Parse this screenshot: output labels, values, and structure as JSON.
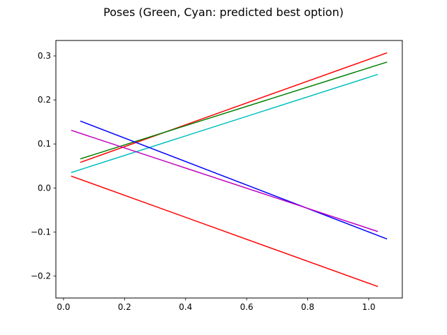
{
  "chart_data": {
    "type": "line",
    "title": "Poses (Green, Cyan: predicted best option)",
    "xlabel": "",
    "ylabel": "",
    "xlim": [
      -0.025,
      1.11
    ],
    "ylim": [
      -0.25,
      0.335
    ],
    "grid": false,
    "xticks": [
      0.0,
      0.2,
      0.4,
      0.6,
      0.8,
      1.0
    ],
    "xtick_labels": [
      "0.0",
      "0.2",
      "0.4",
      "0.6",
      "0.8",
      "1.0"
    ],
    "yticks": [
      -0.2,
      -0.1,
      0.0,
      0.1,
      0.2,
      0.3
    ],
    "ytick_labels": [
      "−0.2",
      "−0.1",
      "0.0",
      "0.1",
      "0.2",
      "0.3"
    ],
    "series": [
      {
        "color": "#ff0000",
        "x": [
          0.055,
          1.06
        ],
        "y": [
          0.058,
          0.307
        ]
      },
      {
        "color": "#008000",
        "x": [
          0.055,
          1.06
        ],
        "y": [
          0.066,
          0.286
        ]
      },
      {
        "color": "#00bfbf",
        "x": [
          0.025,
          1.03
        ],
        "y": [
          0.035,
          0.258
        ]
      },
      {
        "color": "#0000ff",
        "x": [
          0.055,
          1.06
        ],
        "y": [
          0.152,
          -0.116
        ]
      },
      {
        "color": "#bf00bf",
        "x": [
          0.025,
          1.03
        ],
        "y": [
          0.131,
          -0.099
        ]
      },
      {
        "color": "#ff0000",
        "x": [
          0.025,
          1.03
        ],
        "y": [
          0.027,
          -0.224
        ]
      }
    ]
  }
}
